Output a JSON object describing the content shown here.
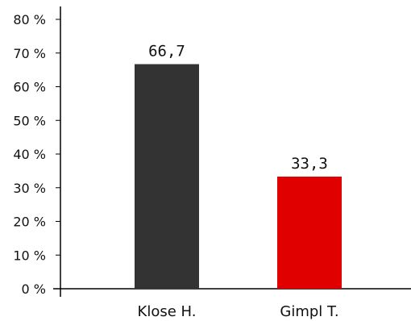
{
  "chart_data": {
    "type": "bar",
    "categories": [
      "Klose H.",
      "Gimpl T."
    ],
    "values": [
      66.7,
      33.3
    ],
    "value_labels": [
      "66,7",
      "33,3"
    ],
    "colors": [
      "#333333",
      "#e00000"
    ],
    "ylim": [
      0,
      80
    ],
    "yticks": [
      0,
      10,
      20,
      30,
      40,
      50,
      60,
      70,
      80
    ],
    "ytick_labels": [
      "0 %",
      "10 %",
      "20 %",
      "30 %",
      "40 %",
      "50 %",
      "60 %",
      "70 %",
      "80 %"
    ],
    "grid": false,
    "title": "",
    "xlabel": "",
    "ylabel": ""
  }
}
